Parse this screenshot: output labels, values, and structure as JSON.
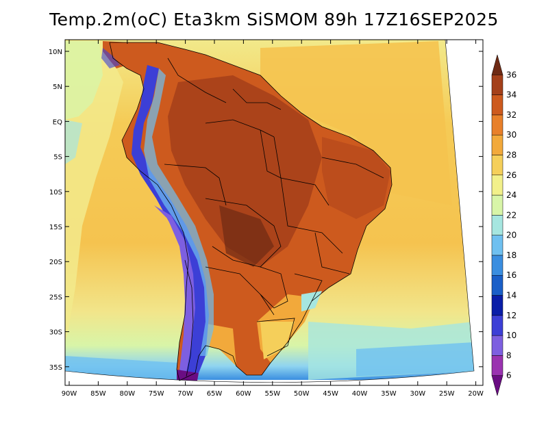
{
  "title": "Temp.2m(oC) Eta3km SiSMOM 89h 17Z16SEP2025",
  "map": {
    "lat_labels": [
      "10N",
      "5N",
      "EQ",
      "5S",
      "10S",
      "15S",
      "20S",
      "25S",
      "30S",
      "35S"
    ],
    "lon_labels": [
      "90W",
      "85W",
      "80W",
      "75W",
      "70W",
      "65W",
      "60W",
      "55W",
      "50W",
      "45W",
      "40W",
      "35W",
      "30W",
      "25W",
      "20W"
    ]
  },
  "colorbar": {
    "labels": [
      "6",
      "8",
      "10",
      "12",
      "14",
      "16",
      "18",
      "20",
      "22",
      "24",
      "26",
      "28",
      "30",
      "32",
      "34",
      "36"
    ],
    "colors": [
      "#6a0d83",
      "#9a33b0",
      "#7d5fe0",
      "#3c3fd6",
      "#0a1ea8",
      "#1a5fc8",
      "#3a8ee0",
      "#6fc0f0",
      "#a6e6e0",
      "#d8f5a8",
      "#f2f08a",
      "#f5cf5a",
      "#f2a93b",
      "#e8802a",
      "#cd5a1e",
      "#a4401a",
      "#6e2a14"
    ]
  },
  "colors": {
    "ocean_warm": "#f5c34f",
    "ocean_mild": "#f0e88a",
    "ocean_cool": "#a6e6e0",
    "land_hot": "#cd5a1e",
    "land_very_hot": "#a4401a",
    "andes_cold": "#3c3fd6",
    "border": "#000000"
  }
}
